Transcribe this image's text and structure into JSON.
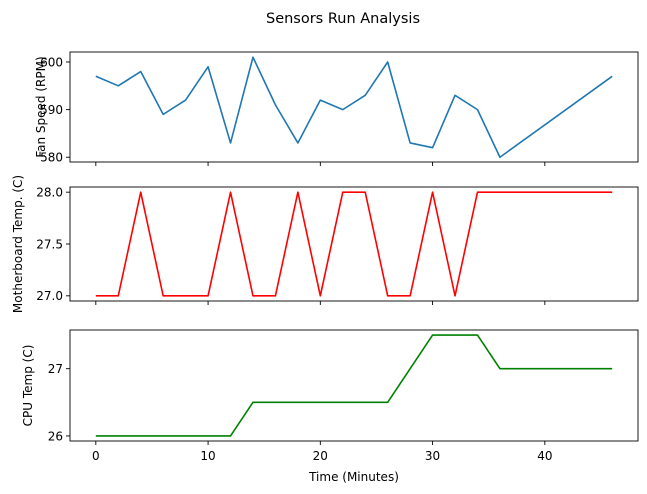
{
  "chart_data": {
    "type": "line",
    "title": "Sensors Run Analysis",
    "xlabel": "Time (Minutes)",
    "x": [
      0,
      2,
      4,
      6,
      8,
      10,
      12,
      14,
      16,
      18,
      20,
      22,
      24,
      26,
      28,
      30,
      32,
      34,
      36,
      46
    ],
    "xlim": [
      -2.3,
      48.3
    ],
    "xticks": [
      0,
      10,
      20,
      30,
      40
    ],
    "xtick_labels": [
      "0",
      "10",
      "20",
      "30",
      "40"
    ],
    "grid": false,
    "subplots": [
      {
        "ylabel": "Fan Speed (RPM)",
        "color": "#1f77b4",
        "values": [
          597,
          595,
          598,
          589,
          592,
          599,
          583,
          601,
          591,
          583,
          592,
          590,
          593,
          600,
          583,
          582,
          593,
          590,
          580,
          597
        ],
        "ylim": [
          579.0,
          602.1
        ],
        "yticks": [
          580,
          590,
          600
        ],
        "ytick_labels": [
          "580",
          "590",
          "600"
        ]
      },
      {
        "ylabel": "Motherboard Temp. (C)",
        "color": "#ff0000",
        "values": [
          27,
          27,
          28,
          27,
          27,
          27,
          28,
          27,
          27,
          28,
          27,
          28,
          28,
          27,
          27,
          28,
          27,
          28,
          28,
          28
        ],
        "ylim": [
          26.95,
          28.05
        ],
        "yticks": [
          27.0,
          27.5,
          28.0
        ],
        "ytick_labels": [
          "27.0",
          "27.5",
          "28.0"
        ]
      },
      {
        "ylabel": "CPU Temp (C)",
        "color": "#008000",
        "values": [
          26,
          26,
          26,
          26,
          26,
          26,
          26,
          26.5,
          26.5,
          26.5,
          26.5,
          26.5,
          26.5,
          26.5,
          27,
          27.5,
          27.5,
          27.5,
          27,
          27
        ],
        "ylim": [
          25.925,
          27.575
        ],
        "yticks": [
          26,
          27
        ],
        "ytick_labels": [
          "26",
          "27"
        ]
      }
    ]
  }
}
